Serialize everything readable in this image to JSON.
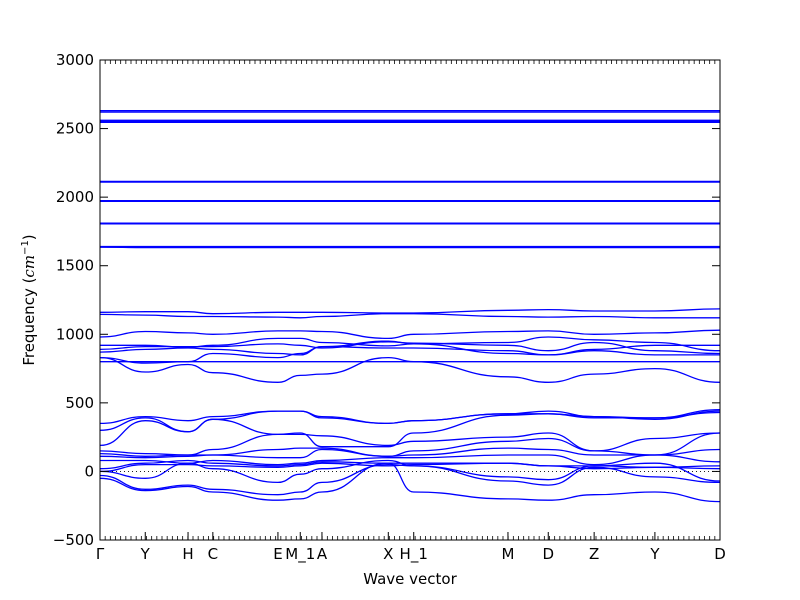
{
  "chart_data": {
    "type": "line",
    "title": "",
    "xlabel": "Wave vector",
    "ylabel": "Frequency ($cm^{-1}$)",
    "ylabel_text": "Frequency (",
    "ylabel_math": "cm",
    "ylabel_sup": "−1",
    "ylabel_close": ")",
    "ylim": [
      -500,
      3000
    ],
    "xlim": [
      0,
      1
    ],
    "yticks": [
      -500,
      0,
      500,
      1000,
      1500,
      2000,
      2500,
      3000
    ],
    "ytick_labels": [
      "−500",
      "0",
      "500",
      "1000",
      "1500",
      "2000",
      "2500",
      "3000"
    ],
    "kpoints": [
      {
        "label": "Γ",
        "x": 0.0
      },
      {
        "label": "Y",
        "x": 0.073
      },
      {
        "label": "H",
        "x": 0.142
      },
      {
        "label": "C",
        "x": 0.182
      },
      {
        "label": "E",
        "x": 0.287
      },
      {
        "label": "M_1",
        "x": 0.323
      },
      {
        "label": "A",
        "x": 0.358
      },
      {
        "label": "X",
        "x": 0.465
      },
      {
        "label": "H_1",
        "x": 0.506
      },
      {
        "label": "M",
        "x": 0.658
      },
      {
        "label": "D",
        "x": 0.723
      },
      {
        "label": "Z",
        "x": 0.797
      },
      {
        "label": "Y",
        "x": 0.895
      },
      {
        "label": "D",
        "x": 1.0
      }
    ],
    "zero_line": {
      "y": 0,
      "style": "dotted"
    },
    "grid": false,
    "legend": "none",
    "line_color": "#0000ff",
    "bands_x": [
      0.0,
      0.073,
      0.142,
      0.182,
      0.287,
      0.323,
      0.358,
      0.465,
      0.506,
      0.658,
      0.723,
      0.797,
      0.895,
      1.0
    ],
    "bands": [
      {
        "y": [
          2630,
          2630,
          2630,
          2630,
          2630,
          2630,
          2630,
          2630,
          2630,
          2630,
          2630,
          2630,
          2630,
          2630
        ]
      },
      {
        "y": [
          2620,
          2620,
          2620,
          2620,
          2620,
          2620,
          2620,
          2620,
          2620,
          2620,
          2620,
          2620,
          2620,
          2620
        ]
      },
      {
        "y": [
          2560,
          2560,
          2560,
          2560,
          2560,
          2560,
          2560,
          2560,
          2560,
          2560,
          2560,
          2560,
          2560,
          2560
        ]
      },
      {
        "y": [
          2550,
          2550,
          2550,
          2550,
          2550,
          2550,
          2550,
          2550,
          2550,
          2550,
          2550,
          2550,
          2550,
          2550
        ]
      },
      {
        "y": [
          2545,
          2545,
          2545,
          2545,
          2545,
          2545,
          2545,
          2545,
          2545,
          2545,
          2545,
          2545,
          2545,
          2545
        ]
      },
      {
        "y": [
          2115,
          2115,
          2115,
          2115,
          2115,
          2115,
          2115,
          2115,
          2115,
          2115,
          2115,
          2115,
          2115,
          2115
        ]
      },
      {
        "y": [
          2110,
          2110,
          2110,
          2110,
          2110,
          2110,
          2110,
          2110,
          2110,
          2110,
          2110,
          2110,
          2110,
          2110
        ]
      },
      {
        "y": [
          1975,
          1975,
          1975,
          1975,
          1975,
          1975,
          1975,
          1975,
          1975,
          1975,
          1975,
          1975,
          1975,
          1975
        ]
      },
      {
        "y": [
          1970,
          1970,
          1970,
          1970,
          1970,
          1970,
          1970,
          1970,
          1970,
          1970,
          1970,
          1970,
          1970,
          1970
        ]
      },
      {
        "y": [
          1810,
          1810,
          1810,
          1810,
          1810,
          1810,
          1810,
          1810,
          1810,
          1810,
          1810,
          1810,
          1810,
          1810
        ]
      },
      {
        "y": [
          1805,
          1805,
          1805,
          1805,
          1805,
          1805,
          1805,
          1805,
          1805,
          1805,
          1805,
          1805,
          1805,
          1805
        ]
      },
      {
        "y": [
          1640,
          1640,
          1640,
          1640,
          1640,
          1640,
          1640,
          1640,
          1640,
          1640,
          1640,
          1640,
          1640,
          1640
        ]
      },
      {
        "y": [
          1635,
          1632,
          1632,
          1632,
          1632,
          1632,
          1632,
          1632,
          1632,
          1632,
          1632,
          1632,
          1632,
          1632
        ]
      },
      {
        "y": [
          1160,
          1165,
          1165,
          1150,
          1160,
          1160,
          1160,
          1155,
          1155,
          1175,
          1180,
          1170,
          1170,
          1185
        ]
      },
      {
        "y": [
          1145,
          1140,
          1130,
          1130,
          1125,
          1120,
          1130,
          1150,
          1150,
          1130,
          1125,
          1130,
          1120,
          1120
        ]
      },
      {
        "y": [
          980,
          1020,
          1010,
          1000,
          1025,
          1025,
          1020,
          970,
          1000,
          1020,
          1025,
          1000,
          1010,
          1030
        ]
      },
      {
        "y": [
          920,
          920,
          905,
          920,
          970,
          970,
          940,
          915,
          930,
          940,
          980,
          960,
          940,
          880
        ]
      },
      {
        "y": [
          890,
          910,
          910,
          910,
          930,
          920,
          900,
          945,
          935,
          920,
          880,
          940,
          880,
          860
        ]
      },
      {
        "y": [
          870,
          890,
          900,
          890,
          860,
          850,
          910,
          900,
          900,
          880,
          850,
          880,
          850,
          850
        ]
      },
      {
        "y": [
          830,
          790,
          800,
          860,
          830,
          860,
          910,
          950,
          930,
          860,
          850,
          890,
          920,
          920
        ]
      },
      {
        "y": [
          800,
          800,
          800,
          800,
          800,
          800,
          800,
          800,
          800,
          800,
          800,
          800,
          800,
          800
        ]
      },
      {
        "y": [
          830,
          725,
          780,
          720,
          650,
          700,
          710,
          830,
          800,
          690,
          650,
          710,
          750,
          650
        ]
      },
      {
        "y": [
          350,
          400,
          370,
          400,
          440,
          440,
          400,
          350,
          370,
          420,
          440,
          400,
          390,
          450
        ]
      },
      {
        "y": [
          300,
          390,
          290,
          380,
          440,
          440,
          390,
          350,
          370,
          420,
          420,
          390,
          390,
          430
        ]
      },
      {
        "y": [
          190,
          370,
          290,
          380,
          270,
          280,
          180,
          180,
          280,
          410,
          420,
          400,
          380,
          440
        ]
      },
      {
        "y": [
          150,
          130,
          120,
          160,
          270,
          270,
          260,
          190,
          220,
          250,
          280,
          150,
          240,
          280
        ]
      },
      {
        "y": [
          130,
          110,
          120,
          120,
          160,
          170,
          170,
          110,
          150,
          220,
          240,
          150,
          120,
          280
        ]
      },
      {
        "y": [
          110,
          100,
          110,
          120,
          100,
          100,
          160,
          110,
          120,
          170,
          160,
          120,
          120,
          160
        ]
      },
      {
        "y": [
          80,
          80,
          60,
          80,
          50,
          60,
          80,
          100,
          100,
          120,
          120,
          50,
          120,
          70
        ]
      },
      {
        "y": [
          20,
          60,
          80,
          60,
          40,
          50,
          70,
          60,
          60,
          60,
          40,
          40,
          30,
          40
        ]
      },
      {
        "y": [
          0,
          50,
          50,
          40,
          30,
          40,
          60,
          40,
          50,
          60,
          40,
          20,
          30,
          20
        ]
      },
      {
        "y": [
          0,
          -50,
          60,
          20,
          -80,
          -20,
          20,
          80,
          40,
          -40,
          -60,
          40,
          60,
          -70
        ]
      },
      {
        "y": [
          -30,
          -130,
          -100,
          -130,
          -170,
          -150,
          -80,
          50,
          40,
          -70,
          -100,
          30,
          -40,
          -80
        ]
      },
      {
        "y": [
          -50,
          -140,
          -110,
          -150,
          -210,
          -200,
          -150,
          60,
          -150,
          -200,
          -210,
          -170,
          -150,
          -220
        ]
      }
    ]
  }
}
